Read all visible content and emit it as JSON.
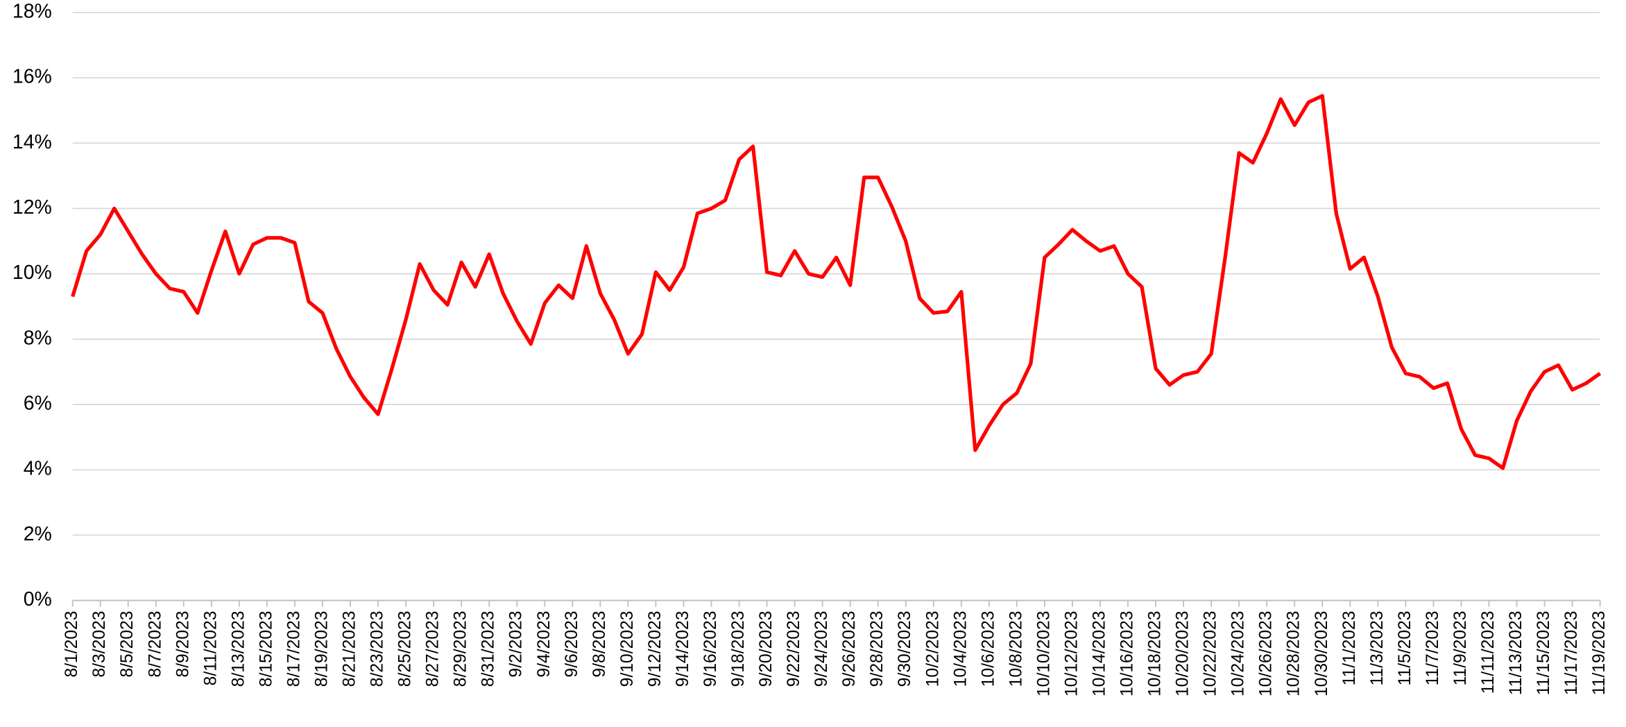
{
  "chart_data": {
    "type": "line",
    "categories": [
      "8/1/2023",
      null,
      "8/3/2023",
      null,
      "8/5/2023",
      null,
      "8/7/2023",
      null,
      "8/9/2023",
      null,
      "8/11/2023",
      null,
      "8/13/2023",
      null,
      "8/15/2023",
      null,
      "8/17/2023",
      null,
      "8/19/2023",
      null,
      "8/21/2023",
      null,
      "8/23/2023",
      null,
      "8/25/2023",
      null,
      "8/27/2023",
      null,
      "8/29/2023",
      null,
      "8/31/2023",
      null,
      "9/2/2023",
      null,
      "9/4/2023",
      null,
      "9/6/2023",
      null,
      "9/8/2023",
      null,
      "9/10/2023",
      null,
      "9/12/2023",
      null,
      "9/14/2023",
      null,
      "9/16/2023",
      null,
      "9/18/2023",
      null,
      "9/20/2023",
      null,
      "9/22/2023",
      null,
      "9/24/2023",
      null,
      "9/26/2023",
      null,
      "9/28/2023",
      null,
      "9/30/2023",
      null,
      "10/2/2023",
      null,
      "10/4/2023",
      null,
      "10/6/2023",
      null,
      "10/8/2023",
      null,
      "10/10/2023",
      null,
      "10/12/2023",
      null,
      "10/14/2023",
      null,
      "10/16/2023",
      null,
      "10/18/2023",
      null,
      "10/20/2023",
      null,
      "10/22/2023",
      null,
      "10/24/2023",
      null,
      "10/26/2023",
      null,
      "10/28/2023",
      null,
      "10/30/2023",
      null,
      "11/1/2023",
      null,
      "11/3/2023",
      null,
      "11/5/2023",
      null,
      "11/7/2023",
      null,
      "11/9/2023",
      null,
      "11/11/2023",
      null,
      "11/13/2023",
      null,
      "11/15/2023",
      null,
      "11/17/2023",
      null,
      "11/19/2023"
    ],
    "series": [
      {
        "color": "#ff0000",
        "values": [
          9.3,
          10.7,
          11.2,
          12.0,
          11.3,
          10.6,
          10.0,
          9.55,
          9.45,
          8.8,
          10.1,
          11.3,
          10.0,
          10.9,
          11.1,
          11.1,
          10.95,
          9.15,
          8.8,
          7.7,
          6.85,
          6.2,
          5.7,
          7.1,
          8.6,
          10.3,
          9.5,
          9.05,
          10.35,
          9.6,
          10.6,
          9.4,
          8.55,
          7.85,
          9.1,
          9.65,
          9.25,
          10.85,
          9.4,
          8.6,
          7.55,
          8.15,
          10.05,
          9.5,
          10.2,
          11.85,
          12.0,
          12.25,
          13.5,
          13.9,
          10.05,
          9.95,
          10.7,
          10.0,
          9.9,
          10.5,
          9.65,
          12.95,
          12.95,
          12.05,
          11.0,
          9.25,
          8.8,
          8.85,
          9.45,
          4.6,
          5.35,
          6.0,
          6.35,
          7.25,
          10.5,
          10.9,
          11.35,
          11.0,
          10.7,
          10.85,
          10.0,
          9.6,
          7.1,
          6.6,
          6.9,
          7.0,
          7.55,
          10.5,
          13.7,
          13.4,
          14.3,
          15.35,
          14.55,
          15.25,
          15.45,
          11.85,
          10.15,
          10.5,
          9.3,
          7.75,
          6.95,
          6.85,
          6.5,
          6.65,
          5.25,
          4.45,
          4.35,
          4.05,
          5.5,
          6.4,
          7.0,
          7.2,
          6.45,
          6.65,
          6.95
        ]
      }
    ],
    "ylim": [
      0,
      18
    ],
    "yticks": [
      {
        "value": 0,
        "label": "0%"
      },
      {
        "value": 2,
        "label": "2%"
      },
      {
        "value": 4,
        "label": "4%"
      },
      {
        "value": 6,
        "label": "6%"
      },
      {
        "value": 8,
        "label": "8%"
      },
      {
        "value": 10,
        "label": "10%"
      },
      {
        "value": 12,
        "label": "12%"
      },
      {
        "value": 14,
        "label": "14%"
      },
      {
        "value": 16,
        "label": "16%"
      },
      {
        "value": 18,
        "label": "18%"
      }
    ],
    "grid": true
  }
}
